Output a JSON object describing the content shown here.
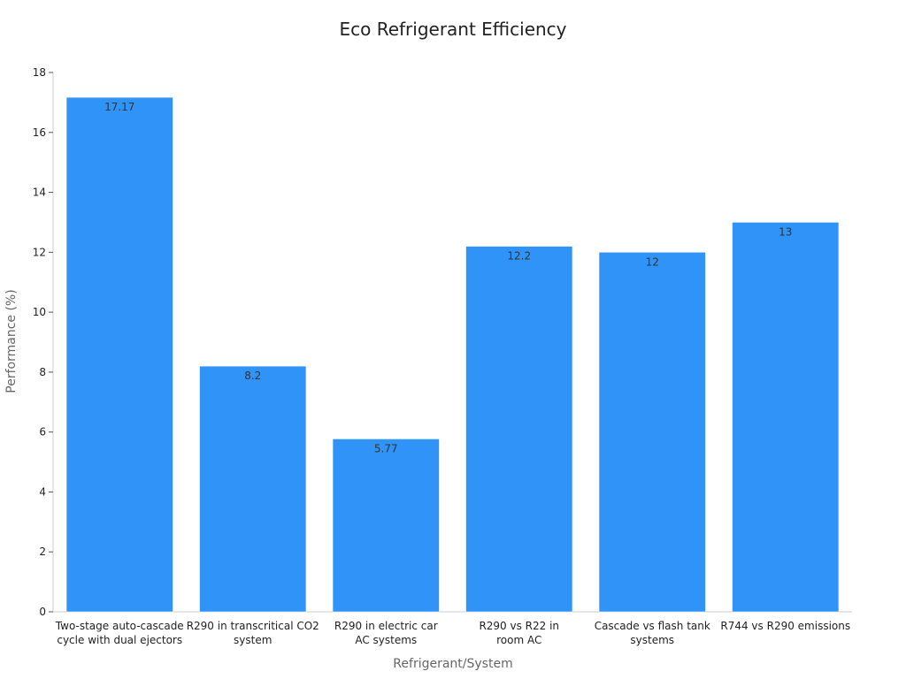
{
  "chart_data": {
    "type": "bar",
    "title": "Eco Refrigerant Efficiency",
    "xlabel": "Refrigerant/System",
    "ylabel": "Performance (%)",
    "ylim": [
      0,
      18
    ],
    "yticks": [
      0,
      2,
      4,
      6,
      8,
      10,
      12,
      14,
      16,
      18
    ],
    "grid": false,
    "categories": [
      [
        "Two-stage auto-cascade",
        "cycle with dual ejectors"
      ],
      [
        "R290 in transcritical CO2",
        "system"
      ],
      [
        "R290 in electric car",
        "AC systems"
      ],
      [
        "R290 vs R22 in",
        "room AC"
      ],
      [
        "Cascade vs flash tank",
        "systems"
      ],
      [
        "R744 vs R290 emissions"
      ]
    ],
    "values": [
      17.17,
      8.2,
      5.77,
      12.2,
      12,
      13
    ],
    "value_labels": [
      "17.17",
      "8.2",
      "5.77",
      "12.2",
      "12",
      "13"
    ],
    "bar_color": "#2f93f8"
  }
}
